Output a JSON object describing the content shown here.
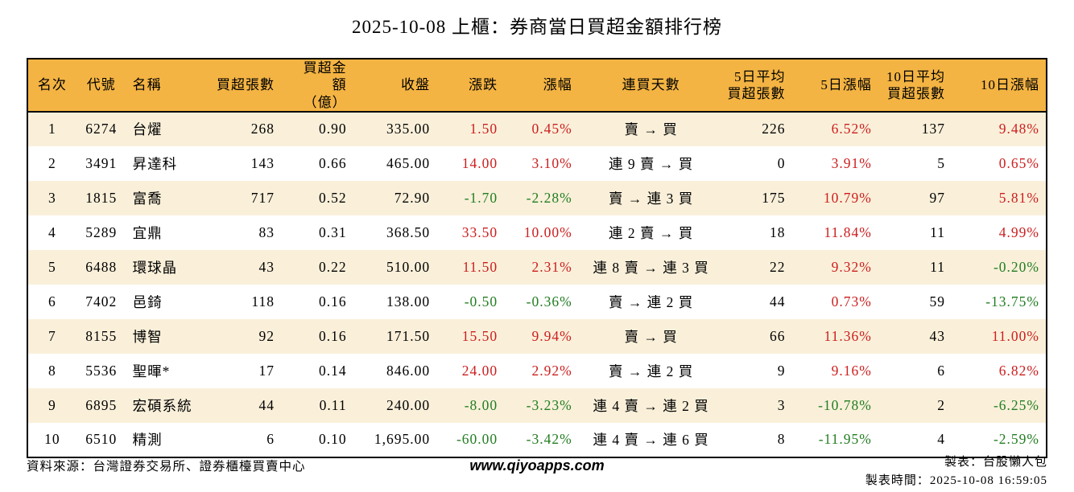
{
  "title": "2025-10-08 上櫃：券商當日買超金額排行榜",
  "colors": {
    "header_bg": "#f4b443",
    "stripe_bg": "#faf0da",
    "up_red": "#cc1e1e",
    "down_green": "#227d22"
  },
  "table": {
    "columns": [
      {
        "key": "rank",
        "label": "名次"
      },
      {
        "key": "code",
        "label": "代號"
      },
      {
        "key": "name",
        "label": "名稱"
      },
      {
        "key": "net_buy_lots",
        "label": "買超張數"
      },
      {
        "key": "net_buy_amount",
        "label": "買超金額\n（億）"
      },
      {
        "key": "close",
        "label": "收盤"
      },
      {
        "key": "change",
        "label": "漲跌",
        "colored": true
      },
      {
        "key": "change_pct",
        "label": "漲幅",
        "colored": true
      },
      {
        "key": "streak",
        "label": "連買天數"
      },
      {
        "key": "avg5_lots",
        "label": "5日平均\n買超張數"
      },
      {
        "key": "pct5",
        "label": "5日漲幅",
        "colored": true
      },
      {
        "key": "avg10_lots",
        "label": "10日平均\n買超張數"
      },
      {
        "key": "pct10",
        "label": "10日漲幅",
        "colored": true
      }
    ],
    "rows": [
      {
        "rank": "1",
        "code": "6274",
        "name": "台燿",
        "net_buy_lots": "268",
        "net_buy_amount": "0.90",
        "close": "335.00",
        "change": "1.50",
        "change_dir": "up",
        "change_pct": "0.45%",
        "streak": "賣 → 買",
        "avg5_lots": "226",
        "pct5": "6.52%",
        "pct5_dir": "up",
        "avg10_lots": "137",
        "pct10": "9.48%",
        "pct10_dir": "up"
      },
      {
        "rank": "2",
        "code": "3491",
        "name": "昇達科",
        "net_buy_lots": "143",
        "net_buy_amount": "0.66",
        "close": "465.00",
        "change": "14.00",
        "change_dir": "up",
        "change_pct": "3.10%",
        "streak": "連 9 賣 → 買",
        "avg5_lots": "0",
        "pct5": "3.91%",
        "pct5_dir": "up",
        "avg10_lots": "5",
        "pct10": "0.65%",
        "pct10_dir": "up"
      },
      {
        "rank": "3",
        "code": "1815",
        "name": "富喬",
        "net_buy_lots": "717",
        "net_buy_amount": "0.52",
        "close": "72.90",
        "change": "-1.70",
        "change_dir": "down",
        "change_pct": "-2.28%",
        "streak": "賣 → 連 3 買",
        "avg5_lots": "175",
        "pct5": "10.79%",
        "pct5_dir": "up",
        "avg10_lots": "97",
        "pct10": "5.81%",
        "pct10_dir": "up"
      },
      {
        "rank": "4",
        "code": "5289",
        "name": "宜鼎",
        "net_buy_lots": "83",
        "net_buy_amount": "0.31",
        "close": "368.50",
        "change": "33.50",
        "change_dir": "up",
        "change_pct": "10.00%",
        "streak": "連 2 賣 → 買",
        "avg5_lots": "18",
        "pct5": "11.84%",
        "pct5_dir": "up",
        "avg10_lots": "11",
        "pct10": "4.99%",
        "pct10_dir": "up"
      },
      {
        "rank": "5",
        "code": "6488",
        "name": "環球晶",
        "net_buy_lots": "43",
        "net_buy_amount": "0.22",
        "close": "510.00",
        "change": "11.50",
        "change_dir": "up",
        "change_pct": "2.31%",
        "streak": "連 8 賣 → 連 3 買",
        "avg5_lots": "22",
        "pct5": "9.32%",
        "pct5_dir": "up",
        "avg10_lots": "11",
        "pct10": "-0.20%",
        "pct10_dir": "down"
      },
      {
        "rank": "6",
        "code": "7402",
        "name": "邑錡",
        "net_buy_lots": "118",
        "net_buy_amount": "0.16",
        "close": "138.00",
        "change": "-0.50",
        "change_dir": "down",
        "change_pct": "-0.36%",
        "streak": "賣 → 連 2 買",
        "avg5_lots": "44",
        "pct5": "0.73%",
        "pct5_dir": "up",
        "avg10_lots": "59",
        "pct10": "-13.75%",
        "pct10_dir": "down"
      },
      {
        "rank": "7",
        "code": "8155",
        "name": "博智",
        "net_buy_lots": "92",
        "net_buy_amount": "0.16",
        "close": "171.50",
        "change": "15.50",
        "change_dir": "up",
        "change_pct": "9.94%",
        "streak": "賣 → 買",
        "avg5_lots": "66",
        "pct5": "11.36%",
        "pct5_dir": "up",
        "avg10_lots": "43",
        "pct10": "11.00%",
        "pct10_dir": "up"
      },
      {
        "rank": "8",
        "code": "5536",
        "name": "聖暉*",
        "net_buy_lots": "17",
        "net_buy_amount": "0.14",
        "close": "846.00",
        "change": "24.00",
        "change_dir": "up",
        "change_pct": "2.92%",
        "streak": "賣 → 連 2 買",
        "avg5_lots": "9",
        "pct5": "9.16%",
        "pct5_dir": "up",
        "avg10_lots": "6",
        "pct10": "6.82%",
        "pct10_dir": "up"
      },
      {
        "rank": "9",
        "code": "6895",
        "name": "宏碩系統",
        "net_buy_lots": "44",
        "net_buy_amount": "0.11",
        "close": "240.00",
        "change": "-8.00",
        "change_dir": "down",
        "change_pct": "-3.23%",
        "streak": "連 4 賣 → 連 2 買",
        "avg5_lots": "3",
        "pct5": "-10.78%",
        "pct5_dir": "down",
        "avg10_lots": "2",
        "pct10": "-6.25%",
        "pct10_dir": "down"
      },
      {
        "rank": "10",
        "code": "6510",
        "name": "精測",
        "net_buy_lots": "6",
        "net_buy_amount": "0.10",
        "close": "1,695.00",
        "change": "-60.00",
        "change_dir": "down",
        "change_pct": "-3.42%",
        "streak": "連 4 賣 → 連 6 買",
        "avg5_lots": "8",
        "pct5": "-11.95%",
        "pct5_dir": "down",
        "avg10_lots": "4",
        "pct10": "-2.59%",
        "pct10_dir": "down"
      }
    ]
  },
  "footer": {
    "source": "資料來源：台灣證券交易所、證券櫃檯買賣中心",
    "website": "www.qiyoapps.com",
    "author": "製表：台股懶人包",
    "generated": "製表時間：2025-10-08 16:59:05"
  },
  "chart_data": {
    "type": "table",
    "title": "2025-10-08 上櫃：券商當日買超金額排行榜",
    "columns": [
      "名次",
      "代號",
      "名稱",
      "買超張數",
      "買超金額（億）",
      "收盤",
      "漲跌",
      "漲幅",
      "連買天數",
      "5日平均買超張數",
      "5日漲幅",
      "10日平均買超張數",
      "10日漲幅"
    ],
    "rows": [
      [
        "1",
        "6274",
        "台燿",
        "268",
        "0.90",
        "335.00",
        "1.50",
        "0.45%",
        "賣 → 買",
        "226",
        "6.52%",
        "137",
        "9.48%"
      ],
      [
        "2",
        "3491",
        "昇達科",
        "143",
        "0.66",
        "465.00",
        "14.00",
        "3.10%",
        "連 9 賣 → 買",
        "0",
        "3.91%",
        "5",
        "0.65%"
      ],
      [
        "3",
        "1815",
        "富喬",
        "717",
        "0.52",
        "72.90",
        "-1.70",
        "-2.28%",
        "賣 → 連 3 買",
        "175",
        "10.79%",
        "97",
        "5.81%"
      ],
      [
        "4",
        "5289",
        "宜鼎",
        "83",
        "0.31",
        "368.50",
        "33.50",
        "10.00%",
        "連 2 賣 → 買",
        "18",
        "11.84%",
        "11",
        "4.99%"
      ],
      [
        "5",
        "6488",
        "環球晶",
        "43",
        "0.22",
        "510.00",
        "11.50",
        "2.31%",
        "連 8 賣 → 連 3 買",
        "22",
        "9.32%",
        "11",
        "-0.20%"
      ],
      [
        "6",
        "7402",
        "邑錡",
        "118",
        "0.16",
        "138.00",
        "-0.50",
        "-0.36%",
        "賣 → 連 2 買",
        "44",
        "0.73%",
        "59",
        "-13.75%"
      ],
      [
        "7",
        "8155",
        "博智",
        "92",
        "0.16",
        "171.50",
        "15.50",
        "9.94%",
        "賣 → 買",
        "66",
        "11.36%",
        "43",
        "11.00%"
      ],
      [
        "8",
        "5536",
        "聖暉*",
        "17",
        "0.14",
        "846.00",
        "24.00",
        "2.92%",
        "賣 → 連 2 買",
        "9",
        "9.16%",
        "6",
        "6.82%"
      ],
      [
        "9",
        "6895",
        "宏碩系統",
        "44",
        "0.11",
        "240.00",
        "-8.00",
        "-3.23%",
        "連 4 賣 → 連 2 買",
        "3",
        "-10.78%",
        "2",
        "-6.25%"
      ],
      [
        "10",
        "6510",
        "精測",
        "6",
        "0.10",
        "1,695.00",
        "-60.00",
        "-3.42%",
        "連 4 賣 → 連 6 買",
        "8",
        "-11.95%",
        "4",
        "-2.59%"
      ]
    ]
  }
}
